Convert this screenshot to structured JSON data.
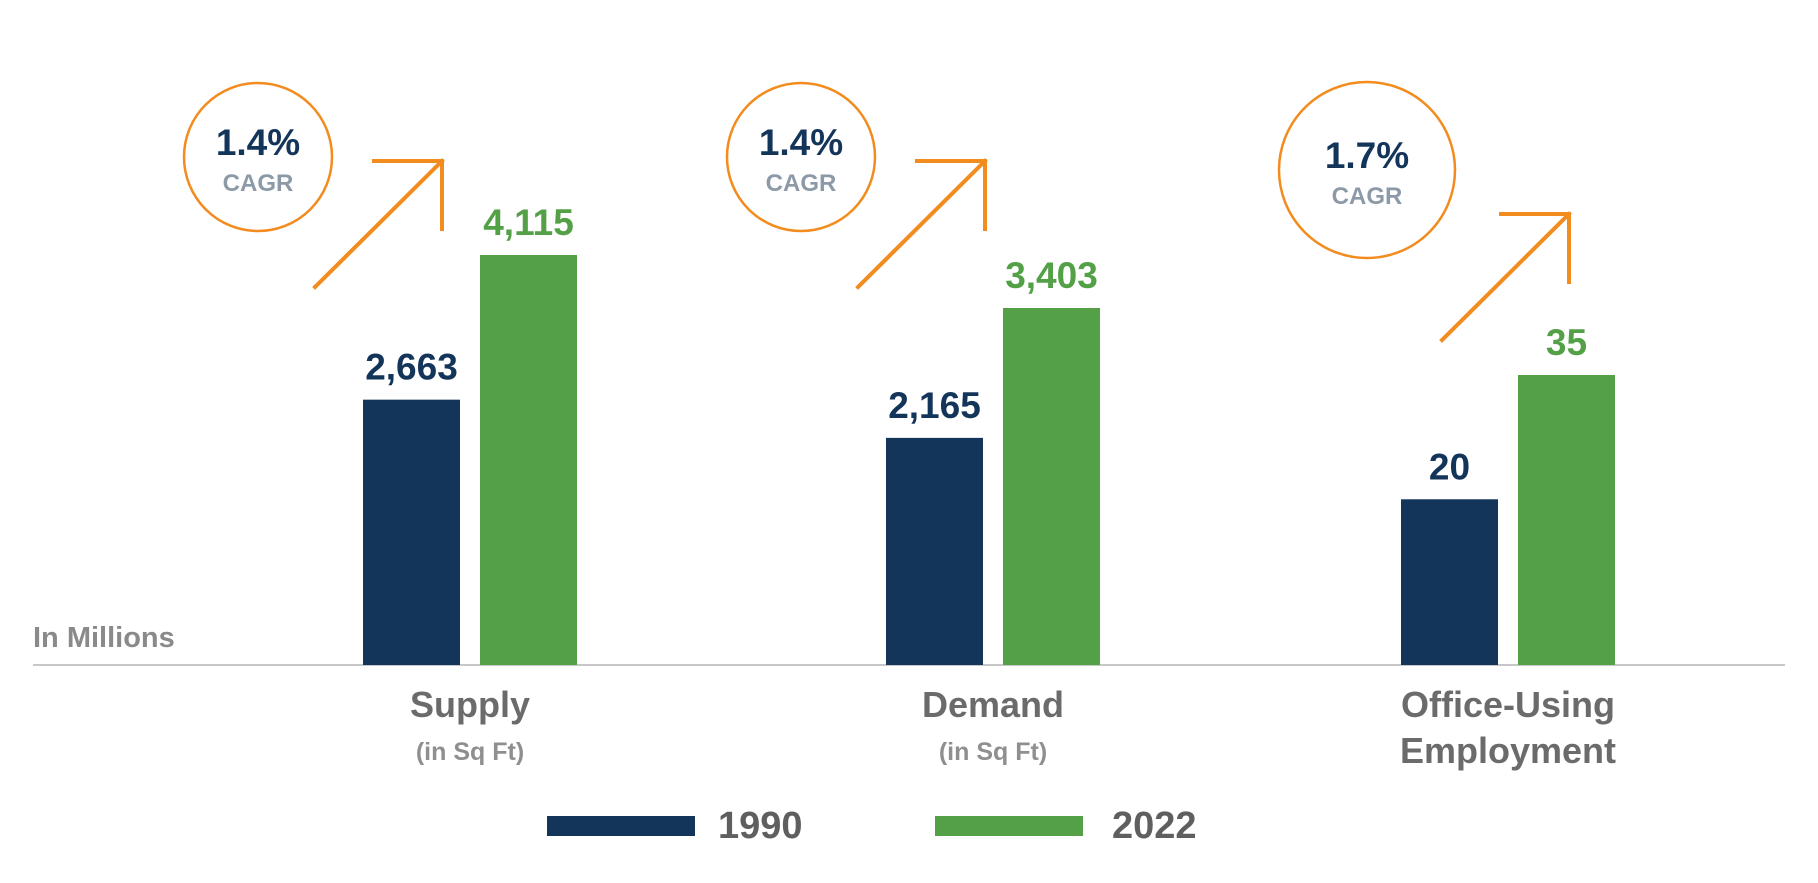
{
  "chart_data": {
    "type": "bar",
    "unit_label": "In Millions",
    "categories": [
      "Supply",
      "Demand",
      "Office-Using Employment"
    ],
    "category_labels": [
      {
        "lines": [
          "Supply"
        ],
        "sub": "(in Sq Ft)"
      },
      {
        "lines": [
          "Demand"
        ],
        "sub": "(in Sq Ft)"
      },
      {
        "lines": [
          "Office-Using",
          "Employment"
        ],
        "sub": ""
      }
    ],
    "series": [
      {
        "name": "1990",
        "color": "#14355a",
        "values": [
          2663,
          2165,
          20
        ],
        "labels": [
          "2,663",
          "2,165",
          "20"
        ]
      },
      {
        "name": "2022",
        "color": "#53a047",
        "values": [
          4115,
          3403,
          35
        ],
        "labels": [
          "4,115",
          "3,403",
          "35"
        ]
      }
    ],
    "cagr": [
      {
        "value": "1.4%",
        "label": "CAGR"
      },
      {
        "value": "1.4%",
        "label": "CAGR"
      },
      {
        "value": "1.7%",
        "label": "CAGR"
      }
    ],
    "note": "Each category is drawn on its own scale (bar heights are relative within each group).",
    "accent_color": "#f28c1e",
    "axis_color": "#c8c8c8",
    "legend": {
      "position": "bottom-center",
      "items": [
        "1990",
        "2022"
      ]
    },
    "grid": false
  }
}
